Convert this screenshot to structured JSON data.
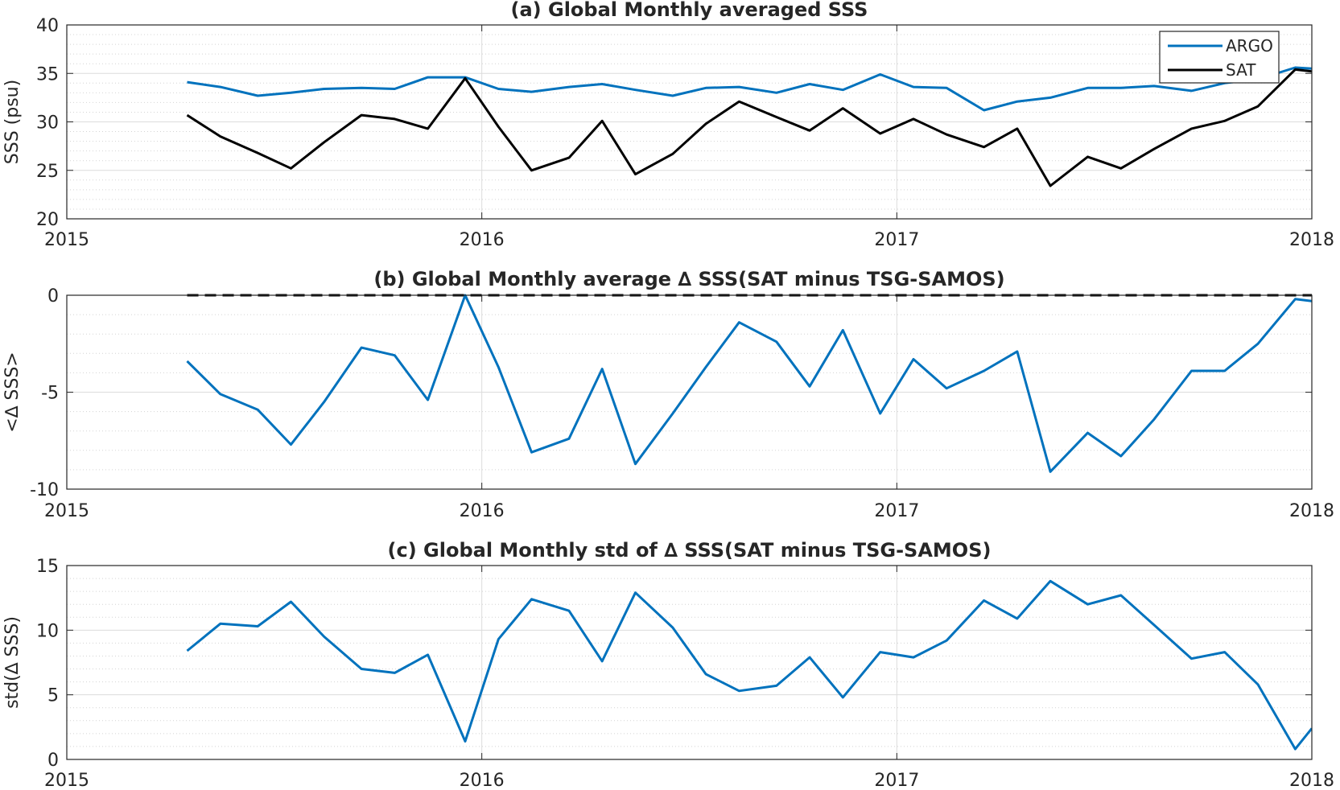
{
  "chart_data": [
    {
      "type": "line",
      "title": "(a) Global Monthly averaged SSS",
      "xlabel": "",
      "ylabel": "SSS (psu)",
      "xlim": [
        2015,
        2018
      ],
      "ylim": [
        20,
        40
      ],
      "xticks": [
        2015,
        2016,
        2017,
        2018
      ],
      "xtick_labels": [
        "2015",
        "2016",
        "2017",
        "2018"
      ],
      "yticks": [
        20,
        25,
        30,
        35,
        40
      ],
      "ytick_labels": [
        "20",
        "25",
        "30",
        "35",
        "40"
      ],
      "grid": true,
      "minor_grid": true,
      "legend": {
        "position": "top-right",
        "entries": [
          "ARGO",
          "SAT"
        ]
      },
      "x": [
        2015.29,
        2015.37,
        2015.46,
        2015.54,
        2015.62,
        2015.71,
        2015.79,
        2015.87,
        2015.96,
        2016.04,
        2016.12,
        2016.21,
        2016.29,
        2016.37,
        2016.46,
        2016.54,
        2016.62,
        2016.71,
        2016.79,
        2016.87,
        2016.96,
        2017.04,
        2017.12,
        2017.21,
        2017.29,
        2017.37,
        2017.46,
        2017.54,
        2017.62,
        2017.71,
        2017.79,
        2017.87,
        2017.96,
        2018.0
      ],
      "series": [
        {
          "name": "ARGO",
          "color": "#0072BD",
          "values": [
            34.1,
            33.6,
            32.7,
            33.0,
            33.4,
            33.5,
            33.4,
            34.6,
            34.6,
            33.4,
            33.1,
            33.6,
            33.9,
            33.3,
            32.7,
            33.5,
            33.6,
            33.0,
            33.9,
            33.3,
            34.9,
            33.6,
            33.5,
            31.2,
            32.1,
            32.5,
            33.5,
            33.5,
            33.7,
            33.2,
            34.0,
            34.4,
            35.6,
            35.5
          ]
        },
        {
          "name": "SAT",
          "color": "#000000",
          "values": [
            30.7,
            28.5,
            26.8,
            25.2,
            27.9,
            30.7,
            30.3,
            29.3,
            34.5,
            29.5,
            25.0,
            26.3,
            30.1,
            24.6,
            26.7,
            29.8,
            32.1,
            30.5,
            29.1,
            31.4,
            28.8,
            30.3,
            28.7,
            27.4,
            29.3,
            23.4,
            26.4,
            25.2,
            27.2,
            29.3,
            30.1,
            31.6,
            35.4,
            35.2
          ]
        }
      ]
    },
    {
      "type": "line",
      "title": "(b) Global Monthly average ∆ SSS(SAT minus TSG-SAMOS)",
      "xlabel": "",
      "ylabel": "<∆ SSS>",
      "xlim": [
        2015,
        2018
      ],
      "ylim": [
        -10,
        0
      ],
      "xticks": [
        2015,
        2016,
        2017,
        2018
      ],
      "xtick_labels": [
        "2015",
        "2016",
        "2017",
        "2018"
      ],
      "yticks": [
        -10,
        -5,
        0
      ],
      "ytick_labels": [
        "-10",
        "-5",
        "0"
      ],
      "grid": true,
      "minor_grid": true,
      "reference_line": {
        "y": 0,
        "x_from": 2015.29,
        "x_to": 2018.0,
        "style": "dashed",
        "color": "#000000"
      },
      "x": [
        2015.29,
        2015.37,
        2015.46,
        2015.54,
        2015.62,
        2015.71,
        2015.79,
        2015.87,
        2015.96,
        2016.04,
        2016.12,
        2016.21,
        2016.29,
        2016.37,
        2016.46,
        2016.54,
        2016.62,
        2016.71,
        2016.79,
        2016.87,
        2016.96,
        2017.04,
        2017.12,
        2017.21,
        2017.29,
        2017.37,
        2017.46,
        2017.54,
        2017.62,
        2017.71,
        2017.79,
        2017.87,
        2017.96,
        2018.0
      ],
      "series": [
        {
          "color": "#0072BD",
          "values": [
            -3.4,
            -5.1,
            -5.9,
            -7.7,
            -5.5,
            -2.7,
            -3.1,
            -5.4,
            0.0,
            -3.7,
            -8.1,
            -7.4,
            -3.8,
            -8.7,
            -6.1,
            -3.7,
            -1.4,
            -2.4,
            -4.7,
            -1.8,
            -6.1,
            -3.3,
            -4.8,
            -3.9,
            -2.9,
            -9.1,
            -7.1,
            -8.3,
            -6.4,
            -3.9,
            -3.9,
            -2.5,
            -0.2,
            -0.3
          ]
        }
      ]
    },
    {
      "type": "line",
      "title": "(c) Global Monthly std of ∆ SSS(SAT minus TSG-SAMOS)",
      "xlabel": "",
      "ylabel": "std(∆ SSS)",
      "xlim": [
        2015,
        2018
      ],
      "ylim": [
        0,
        15
      ],
      "xticks": [
        2015,
        2016,
        2017,
        2018
      ],
      "xtick_labels": [
        "2015",
        "2016",
        "2017",
        "2018"
      ],
      "yticks": [
        0,
        5,
        10,
        15
      ],
      "ytick_labels": [
        "0",
        "5",
        "10",
        "15"
      ],
      "grid": true,
      "minor_grid": true,
      "x": [
        2015.29,
        2015.37,
        2015.46,
        2015.54,
        2015.62,
        2015.71,
        2015.79,
        2015.87,
        2015.96,
        2016.04,
        2016.12,
        2016.21,
        2016.29,
        2016.37,
        2016.46,
        2016.54,
        2016.62,
        2016.71,
        2016.79,
        2016.87,
        2016.96,
        2017.04,
        2017.12,
        2017.21,
        2017.29,
        2017.37,
        2017.46,
        2017.54,
        2017.62,
        2017.71,
        2017.79,
        2017.87,
        2017.96,
        2018.0
      ],
      "series": [
        {
          "color": "#0072BD",
          "values": [
            8.4,
            10.5,
            10.3,
            12.2,
            9.5,
            7.0,
            6.7,
            8.1,
            1.4,
            9.3,
            12.4,
            11.5,
            7.6,
            12.9,
            10.2,
            6.6,
            5.3,
            5.7,
            7.9,
            4.8,
            8.3,
            7.9,
            9.2,
            12.3,
            10.9,
            13.8,
            12.0,
            12.7,
            10.4,
            7.8,
            8.3,
            5.8,
            0.8,
            2.4
          ]
        }
      ]
    }
  ]
}
